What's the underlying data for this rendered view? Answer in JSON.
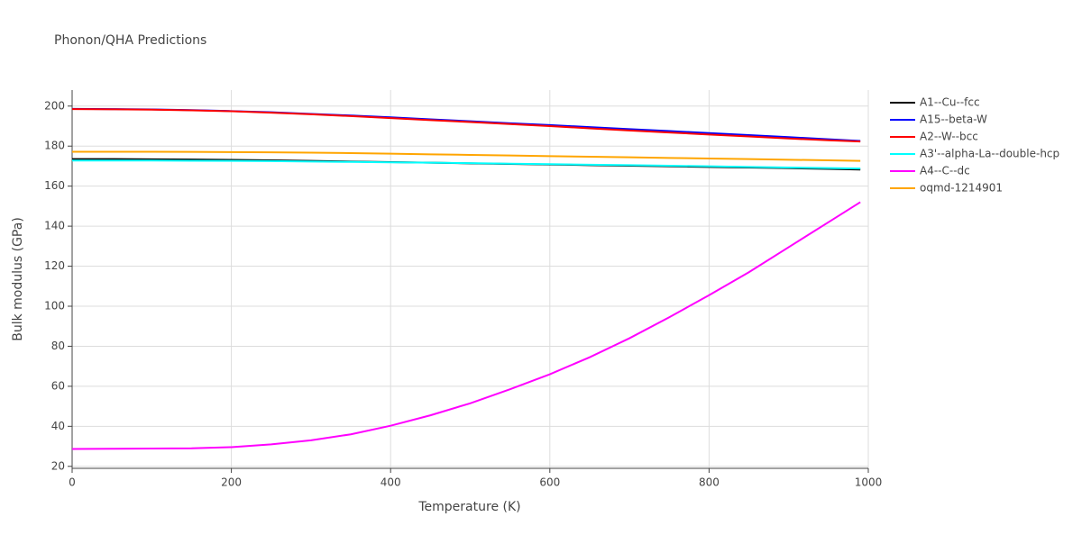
{
  "chart_data": {
    "type": "line",
    "title": "Phonon/QHA Predictions",
    "x_label": "Temperature (K)",
    "y_label": "Bulk modulus (GPa)",
    "x": [
      0,
      50,
      100,
      150,
      200,
      250,
      300,
      350,
      400,
      450,
      500,
      550,
      600,
      650,
      700,
      750,
      800,
      850,
      900,
      950,
      990
    ],
    "series": [
      {
        "name": "A1--Cu--fcc",
        "color": "#000000",
        "values": [
          173.5,
          173.5,
          173.4,
          173.3,
          173.1,
          172.9,
          172.6,
          172.3,
          172.0,
          171.7,
          171.4,
          171.1,
          170.8,
          170.5,
          170.2,
          169.9,
          169.6,
          169.3,
          169.0,
          168.6,
          168.3
        ]
      },
      {
        "name": "A15--beta-W",
        "color": "#0000ff",
        "values": [
          198.6,
          198.5,
          198.3,
          198.0,
          197.5,
          196.9,
          196.1,
          195.3,
          194.4,
          193.4,
          192.4,
          191.4,
          190.5,
          189.5,
          188.5,
          187.5,
          186.5,
          185.5,
          184.5,
          183.4,
          182.6
        ]
      },
      {
        "name": "A2--W--bcc",
        "color": "#ff0000",
        "values": [
          198.5,
          198.4,
          198.2,
          197.9,
          197.4,
          196.7,
          195.9,
          195.0,
          194.0,
          193.0,
          192.0,
          191.0,
          190.0,
          188.9,
          187.8,
          186.8,
          185.8,
          184.8,
          183.8,
          182.9,
          182.3
        ]
      },
      {
        "name": "A3'--alpha-La--double-hcp",
        "color": "#00ffff",
        "values": [
          172.8,
          172.8,
          172.8,
          172.7,
          172.6,
          172.5,
          172.3,
          172.1,
          171.9,
          171.7,
          171.5,
          171.2,
          171.0,
          170.7,
          170.5,
          170.2,
          169.9,
          169.6,
          169.3,
          169.0,
          168.8
        ]
      },
      {
        "name": "A4--C--dc",
        "color": "#ff00ff",
        "values": [
          28.7,
          28.8,
          28.9,
          29.0,
          29.6,
          31.0,
          33.0,
          36.0,
          40.3,
          45.5,
          51.5,
          58.5,
          66.0,
          74.5,
          84.0,
          94.5,
          105.5,
          117.0,
          129.5,
          142.0,
          152.0
        ]
      },
      {
        "name": "oqmd-1214901",
        "color": "#ffa500",
        "values": [
          177.2,
          177.2,
          177.2,
          177.1,
          177.0,
          176.9,
          176.7,
          176.5,
          176.2,
          175.9,
          175.6,
          175.3,
          175.0,
          174.7,
          174.4,
          174.1,
          173.8,
          173.5,
          173.2,
          172.9,
          172.6
        ]
      }
    ],
    "xlim": [
      0,
      1000
    ],
    "xticks": [
      0,
      200,
      400,
      600,
      800,
      1000
    ],
    "ylim": [
      19,
      208
    ],
    "yticks": [
      20,
      40,
      60,
      80,
      100,
      120,
      140,
      160,
      180,
      200
    ],
    "grid": true
  }
}
